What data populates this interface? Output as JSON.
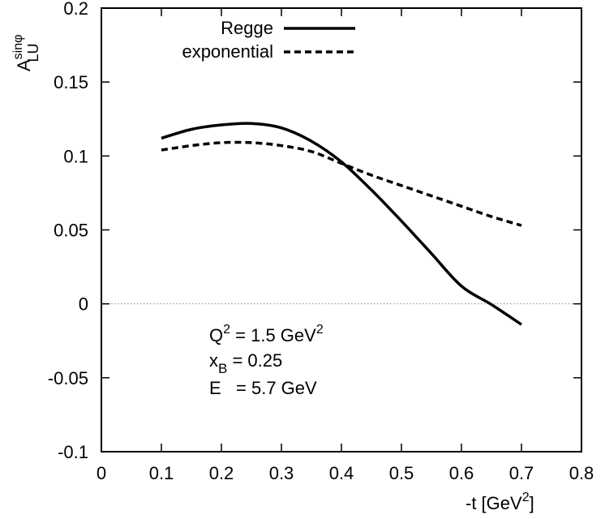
{
  "chart_data": {
    "type": "line",
    "ylabel": {
      "base": "A",
      "sup": "sinφ",
      "sub": "LU"
    },
    "xlabel": {
      "prefix": "-t [GeV",
      "sup": "2",
      "suffix": "]"
    },
    "xlim": [
      0,
      0.8
    ],
    "ylim": [
      -0.1,
      0.2
    ],
    "xticks": [
      "0",
      "0.1",
      "0.2",
      "0.3",
      "0.4",
      "0.5",
      "0.6",
      "0.7",
      "0.8"
    ],
    "yticks": [
      "-0.1",
      "-0.05",
      "0",
      "0.05",
      "0.1",
      "0.15",
      "0.2"
    ],
    "zero_line": true,
    "legend_position": "top-left",
    "series": [
      {
        "name": "Regge",
        "style": "solid",
        "color": "#000000",
        "x": [
          0.1,
          0.15,
          0.2,
          0.25,
          0.3,
          0.35,
          0.4,
          0.45,
          0.5,
          0.55,
          0.6,
          0.65,
          0.7
        ],
        "y": [
          0.112,
          0.118,
          0.121,
          0.122,
          0.119,
          0.11,
          0.096,
          0.077,
          0.056,
          0.034,
          0.012,
          -0.0005,
          -0.014
        ]
      },
      {
        "name": "exponential",
        "style": "dashed",
        "color": "#000000",
        "x": [
          0.1,
          0.15,
          0.2,
          0.25,
          0.3,
          0.35,
          0.4,
          0.45,
          0.5,
          0.55,
          0.6,
          0.65,
          0.7
        ],
        "y": [
          0.104,
          0.107,
          0.109,
          0.109,
          0.107,
          0.103,
          0.095,
          0.087,
          0.08,
          0.073,
          0.066,
          0.059,
          0.053
        ]
      }
    ],
    "annotations": [
      {
        "base": "Q",
        "sup": "2",
        "mid": " = 1.5 GeV",
        "sup2": "2"
      },
      {
        "base": "x",
        "sub": "B",
        "mid": " = 0.25"
      },
      {
        "base": "E",
        "mid": "   = 5.7 GeV"
      }
    ]
  }
}
